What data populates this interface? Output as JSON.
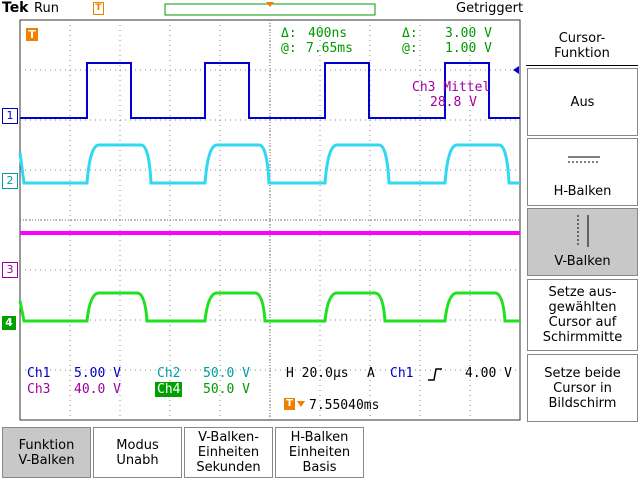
{
  "header": {
    "brand": "Tek",
    "status": "Run",
    "trigger_state": "Getriggert"
  },
  "markers": {
    "trigger": "T",
    "channels": [
      "1",
      "2",
      "3",
      "4"
    ]
  },
  "cursor_readout": {
    "time_delta_label": "Δ:",
    "time_delta": "400ns",
    "time_at_label": "@:",
    "time_at": "7.65ms",
    "volt_delta_label": "Δ:",
    "volt_delta": "3.00 V",
    "volt_at_label": "@:",
    "volt_at": "1.00 V"
  },
  "measurement": {
    "label": "Ch3 Mittel",
    "value": "28.8 V"
  },
  "channels": [
    {
      "name": "Ch1",
      "scale": "5.00 V"
    },
    {
      "name": "Ch2",
      "scale": "50.0 V"
    },
    {
      "name": "Ch3",
      "scale": "40.0 V"
    },
    {
      "name": "Ch4",
      "scale": "50.0 V"
    }
  ],
  "timebase": {
    "horizontal": "H 20.0µs",
    "mode": "A",
    "source": "Ch1",
    "level": "4.00 V",
    "trigger_position": "7.55040ms"
  },
  "side_menu": {
    "title": [
      "Cursor-",
      "Funktion"
    ],
    "items": [
      [
        "Aus"
      ],
      [
        "H-Balken"
      ],
      [
        "V-Balken"
      ],
      [
        "Setze aus-",
        "gewählten",
        "Cursor auf",
        "Schirmmitte"
      ],
      [
        "Setze beide",
        "Cursor in",
        "Bildschirm"
      ]
    ]
  },
  "bottom_menu": [
    [
      "Funktion",
      "V-Balken"
    ],
    [
      "Modus",
      "Unabh"
    ],
    [
      "V-Balken-",
      "Einheiten",
      "Sekunden"
    ],
    [
      "H-Balken",
      "Einheiten",
      "Basis"
    ]
  ]
}
